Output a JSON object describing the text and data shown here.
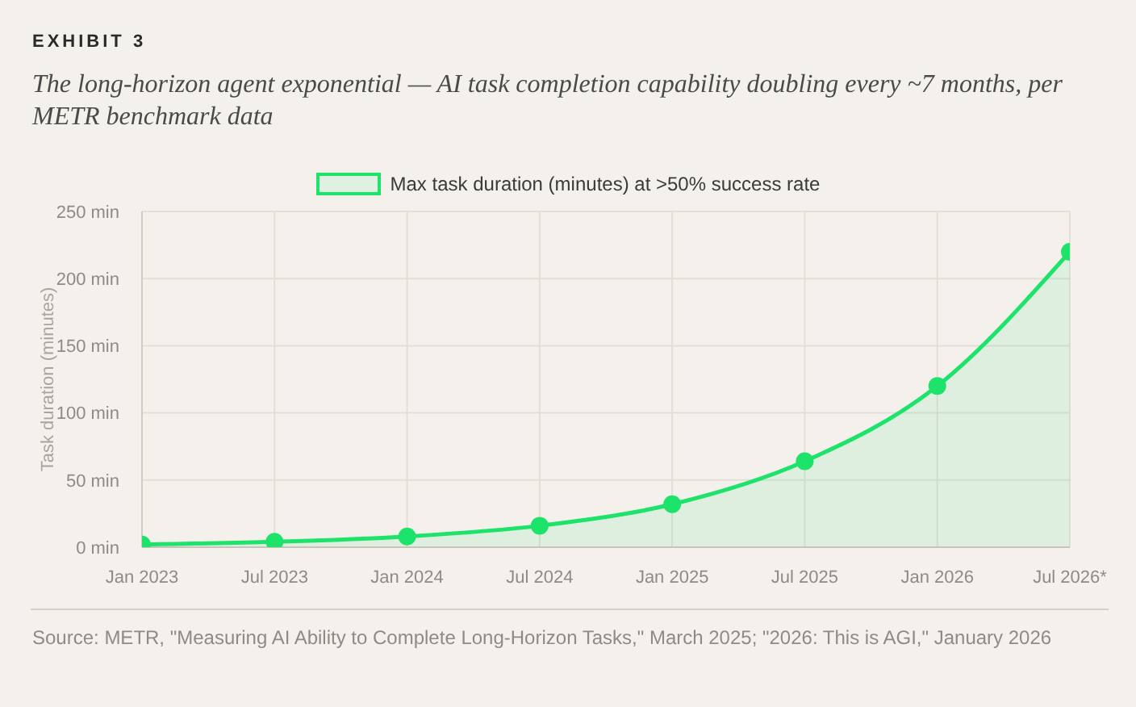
{
  "chart_data": {
    "type": "area",
    "title": "EXHIBIT 3",
    "subtitle": "The long-horizon agent exponential — AI task completion capability doubling every ~7 months, per METR benchmark data",
    "ylabel": "Task duration (minutes)",
    "categories": [
      "Jan 2023",
      "Jul 2023",
      "Jan 2024",
      "Jul 2024",
      "Jan 2025",
      "Jul 2025",
      "Jan 2026",
      "Jul 2026*"
    ],
    "series": [
      {
        "name": "Max task duration (minutes) at >50% success rate",
        "color": "#1ee36b",
        "values": [
          2,
          4,
          8,
          16,
          32,
          64,
          120,
          220
        ]
      }
    ],
    "ylim": [
      0,
      250
    ],
    "yticks": [
      {
        "value": 0,
        "label": "0 min"
      },
      {
        "value": 50,
        "label": "50 min"
      },
      {
        "value": 100,
        "label": "100 min"
      },
      {
        "value": 150,
        "label": "150 min"
      },
      {
        "value": 200,
        "label": "200 min"
      },
      {
        "value": 250,
        "label": "250 min"
      }
    ],
    "grid": true,
    "legend": "top",
    "marker": "circle",
    "line_style": "solid",
    "annotations": [
      "Source: METR, \"Measuring AI Ability to Complete Long-Horizon Tasks,\" March 2025; \"2026: This is AGI,\" January 2026"
    ]
  }
}
